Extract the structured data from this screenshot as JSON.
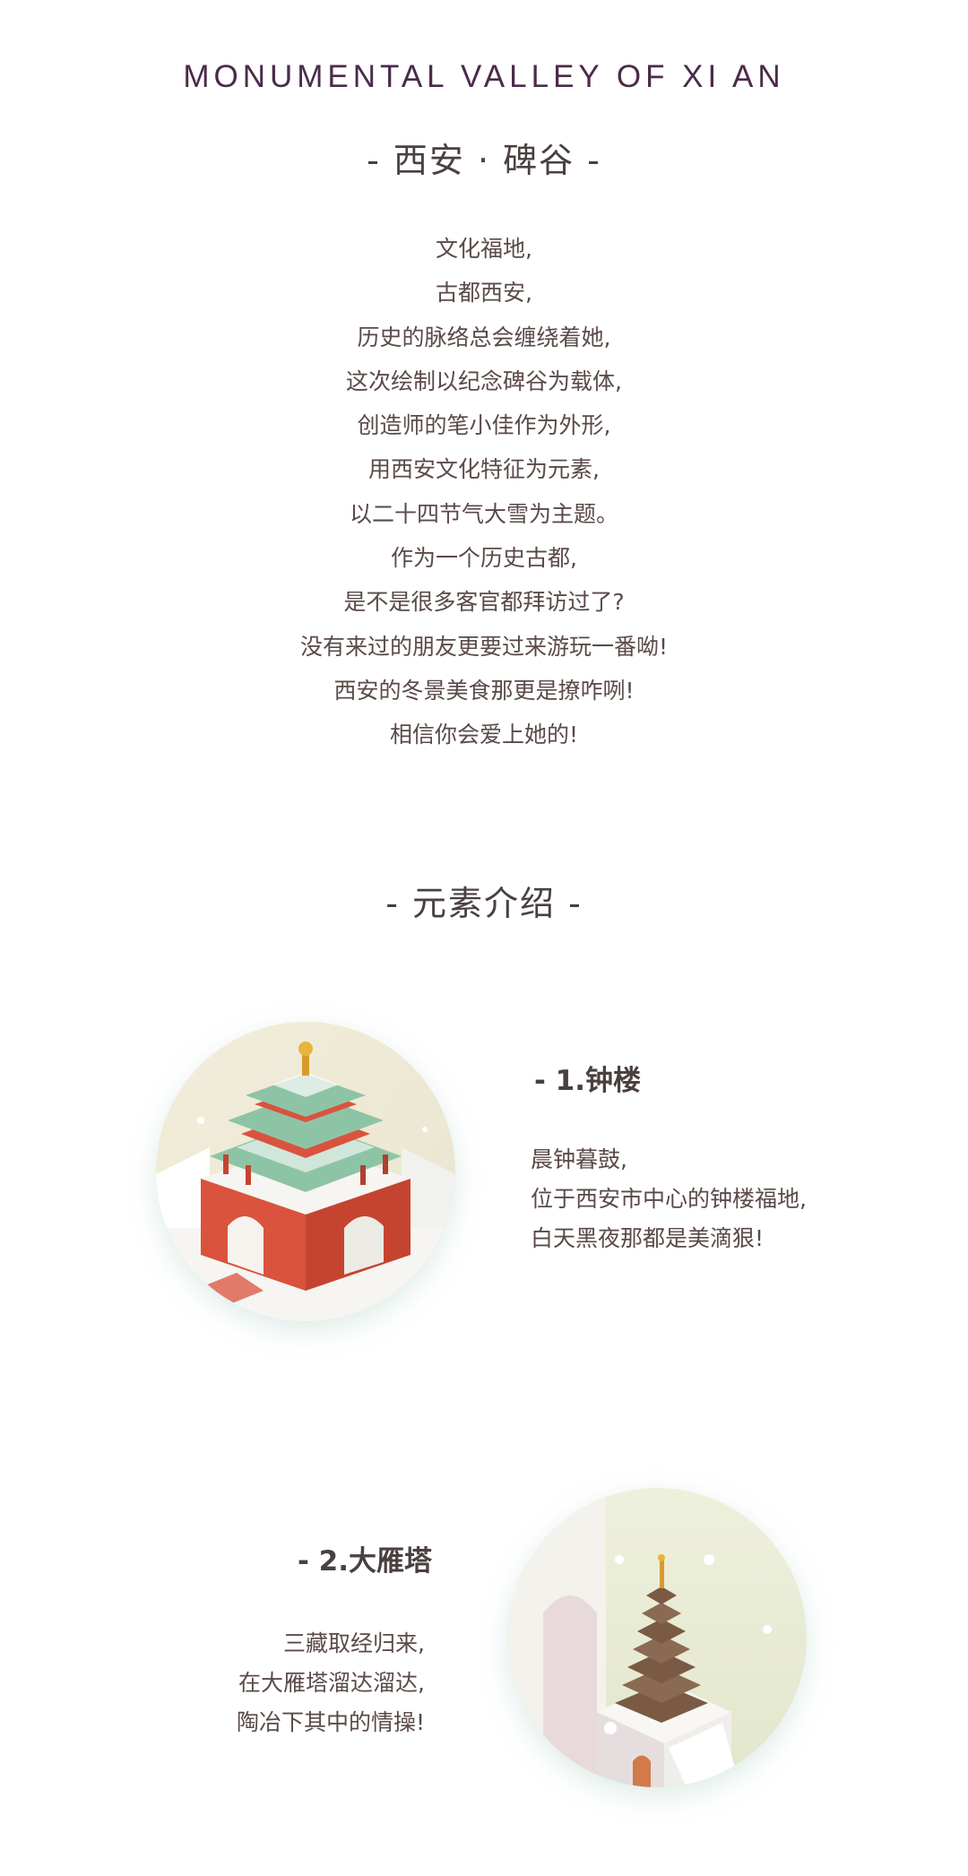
{
  "header": {
    "en_title": "MONUMENTAL VALLEY OF XI AN",
    "zh_title": "- 西安 · 碑谷 -"
  },
  "intro": {
    "lines": [
      "文化福地,",
      "古都西安,",
      "历史的脉络总会缠绕着她,",
      "这次绘制以纪念碑谷为载体,",
      "创造师的笔小佳作为外形,",
      "用西安文化特征为元素,",
      "以二十四节气大雪为主题。",
      "作为一个历史古都,",
      "是不是很多客官都拜访过了?",
      "没有来过的朋友更要过来游玩一番呦!",
      "西安的冬景美食那更是撩咋咧!",
      "相信你会爱上她的!"
    ]
  },
  "elements": {
    "section_title": "- 元素介绍 -",
    "items": [
      {
        "title": "- 1.钟楼",
        "desc": [
          "晨钟暮鼓,",
          "位于西安市中心的钟楼福地,",
          "白天黑夜那都是美滴狠!"
        ],
        "image": "bell-tower-illustration"
      },
      {
        "title": "- 2.大雁塔",
        "desc": [
          "三藏取经归来,",
          "在大雁塔溜达溜达,",
          "陶冶下其中的情操!"
        ],
        "image": "wild-goose-pagoda-illustration"
      }
    ]
  },
  "colors": {
    "en_title": "#4b2b4a",
    "text": "#5a4a48",
    "roof_green": "#8ec4a6",
    "wall_red": "#d9533e",
    "pagoda_brown": "#7a5a44",
    "circle_bg": "#efe9d2"
  }
}
